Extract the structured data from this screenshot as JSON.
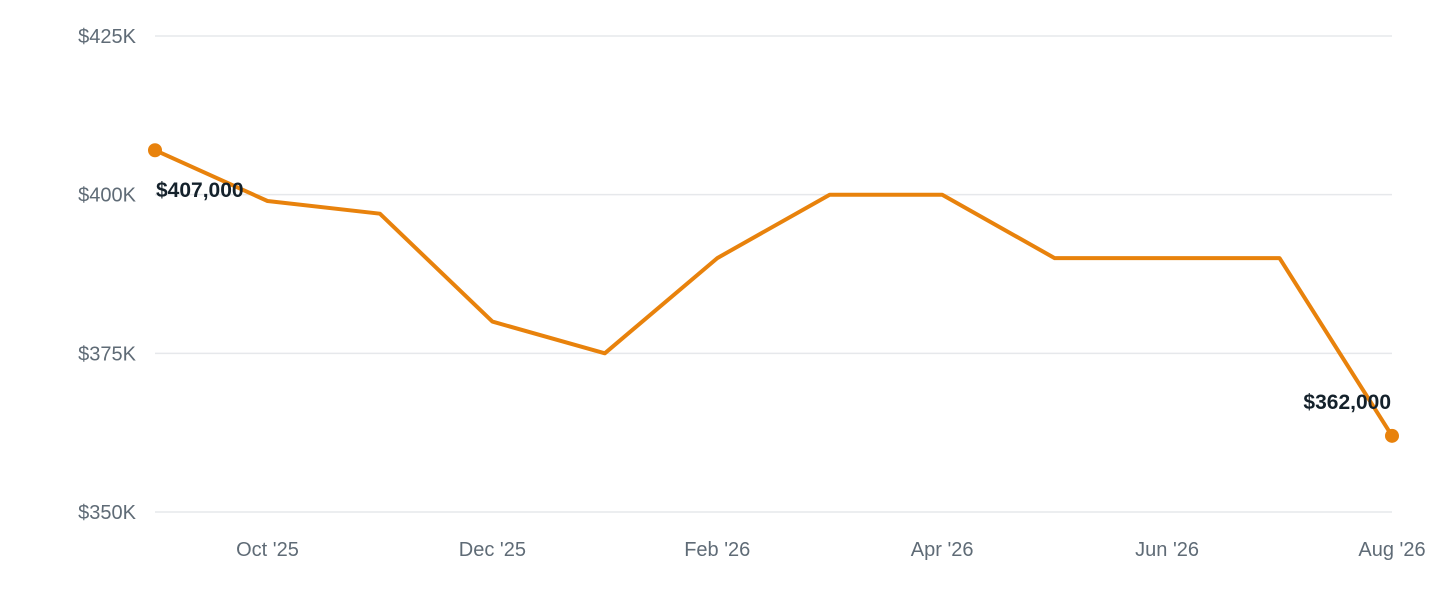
{
  "chart_data": {
    "type": "line",
    "x": [
      "Sep '25",
      "Oct '25",
      "Nov '25",
      "Dec '25",
      "Jan '26",
      "Feb '26",
      "Mar '26",
      "Apr '26",
      "May '26",
      "Jun '26",
      "Jul '26",
      "Aug '26"
    ],
    "series": [
      {
        "values": [
          407000,
          399000,
          397000,
          380000,
          375000,
          390000,
          400000,
          400000,
          390000,
          390000,
          390000,
          362000
        ]
      }
    ],
    "x_tick_labels": [
      "Oct '25",
      "Dec '25",
      "Feb '26",
      "Apr '26",
      "Jun '26",
      "Aug '26"
    ],
    "y_tick_labels": [
      "$350K",
      "$375K",
      "$400K",
      "$425K"
    ],
    "y_ticks": [
      350000,
      375000,
      400000,
      425000
    ],
    "ylim": [
      350000,
      425000
    ],
    "data_labels": [
      {
        "index": 0,
        "text": "$407,000"
      },
      {
        "index": 11,
        "text": "$362,000"
      }
    ],
    "endpoint_markers": true,
    "grid": true,
    "title": "",
    "xlabel": "",
    "ylabel": ""
  },
  "colors": {
    "series": "#e8820c",
    "grid": "#e6e8eb",
    "tick_text": "#5f6b76",
    "label_text": "#14212b"
  }
}
